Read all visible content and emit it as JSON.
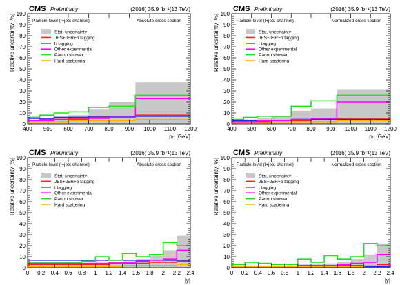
{
  "colors": {
    "stat": "#c8c8c8",
    "jes": "#ff2020",
    "btag": "#1e2cf0",
    "tag": "#1e2cf0",
    "other": "#ff00ff",
    "ps": "#1ce01c",
    "hard": "#ffb000"
  },
  "chart_data": [
    {
      "type": "histogram",
      "cms": "CMS",
      "prelim": "Preliminary",
      "lumi": "(2016) 35.9 fb⁻¹(13 TeV)",
      "channel": "Particle level (l+jets channel)",
      "xs_label": "Absolute cross section",
      "xlabel": "pₜˡ [GeV]",
      "ylabel": "Relative uncertainty [%]",
      "xlim": [
        400,
        1200
      ],
      "ylim": [
        0,
        100
      ],
      "xticks": [
        400,
        500,
        600,
        700,
        800,
        900,
        1000,
        1100,
        1200
      ],
      "yticks": [
        0,
        10,
        20,
        30,
        40,
        50,
        60,
        70,
        80,
        90,
        100
      ],
      "bins": [
        400,
        460,
        530,
        600,
        700,
        800,
        930,
        1200
      ],
      "series": [
        {
          "name": "Stat. uncertainty",
          "key": "stat",
          "fill": true,
          "values": [
            4,
            5,
            6,
            8,
            13,
            20,
            38
          ]
        },
        {
          "name": "JES+JER+b tagging",
          "key": "jes",
          "values": [
            3,
            4,
            4,
            5,
            6,
            7,
            8
          ]
        },
        {
          "name": "b tagging",
          "key": "btag",
          "values": [
            5,
            5,
            6,
            6,
            7,
            7,
            7
          ]
        },
        {
          "name": "Other experimental",
          "key": "other",
          "values": [
            3,
            3,
            4,
            4,
            5,
            6,
            23
          ]
        },
        {
          "name": "Parton shower",
          "key": "ps",
          "values": [
            6,
            8,
            10,
            11,
            15,
            16,
            26
          ]
        },
        {
          "name": "Hard scattering",
          "key": "hard",
          "values": [
            2,
            2,
            2,
            3,
            3,
            3,
            4
          ]
        }
      ]
    },
    {
      "type": "histogram",
      "cms": "CMS",
      "prelim": "Preliminary",
      "lumi": "(2016) 35.9 fb⁻¹(13 TeV)",
      "channel": "Particle level (l+jets channel)",
      "xs_label": "Normalized cross section",
      "xlabel": "pₜˡ [GeV]",
      "ylabel": "Relative uncertainty [%]",
      "xlim": [
        400,
        1200
      ],
      "ylim": [
        0,
        100
      ],
      "xticks": [
        400,
        500,
        600,
        700,
        800,
        900,
        1000,
        1100,
        1200
      ],
      "yticks": [
        0,
        10,
        20,
        30,
        40,
        50,
        60,
        70,
        80,
        90,
        100
      ],
      "bins": [
        400,
        460,
        530,
        600,
        700,
        800,
        930,
        1200
      ],
      "series": [
        {
          "name": "Stat. uncertainty",
          "key": "stat",
          "fill": true,
          "values": [
            3,
            4,
            5,
            7,
            12,
            14,
            31
          ]
        },
        {
          "name": "JES+JER+b tagging",
          "key": "jes",
          "values": [
            2,
            2,
            2,
            3,
            3,
            4,
            5
          ]
        },
        {
          "name": "t tagging",
          "key": "tag",
          "values": [
            3,
            3,
            3,
            3,
            4,
            4,
            4
          ]
        },
        {
          "name": "Other experimental",
          "key": "other",
          "values": [
            2,
            2,
            3,
            3,
            4,
            5,
            20
          ]
        },
        {
          "name": "Parton shower",
          "key": "ps",
          "values": [
            4,
            6,
            7,
            7,
            16,
            21,
            26
          ]
        },
        {
          "name": "Hard scattering",
          "key": "hard",
          "values": [
            1,
            1,
            1,
            2,
            2,
            2,
            3
          ]
        }
      ]
    },
    {
      "type": "histogram",
      "cms": "CMS",
      "prelim": "Preliminary",
      "lumi": "(2016) 35.9 fb⁻¹(13 TeV)",
      "channel": "Particle level (l+jets channel)",
      "xs_label": "Absolute cross section",
      "xlabel": "|y|",
      "ylabel": "Relative uncertainty [%]",
      "xlim": [
        0,
        2.4
      ],
      "ylim": [
        0,
        100
      ],
      "xticks": [
        0,
        0.2,
        0.4,
        0.6,
        0.8,
        1,
        1.2,
        1.4,
        1.6,
        1.8,
        2,
        2.2,
        2.4
      ],
      "yticks": [
        0,
        10,
        20,
        30,
        40,
        50,
        60,
        70,
        80,
        90,
        100
      ],
      "bins": [
        0,
        0.2,
        0.4,
        0.6,
        0.8,
        1.0,
        1.2,
        1.4,
        1.6,
        1.8,
        2.0,
        2.2,
        2.4
      ],
      "series": [
        {
          "name": "Stat. uncertainty",
          "key": "stat",
          "fill": true,
          "values": [
            3,
            3,
            3,
            3,
            3,
            4,
            5,
            6,
            8,
            11,
            16,
            29
          ]
        },
        {
          "name": "JES+JER+b tagging",
          "key": "jes",
          "values": [
            3,
            3,
            3,
            3,
            3,
            3,
            4,
            4,
            4,
            5,
            5,
            6
          ]
        },
        {
          "name": "t tagging",
          "key": "tag",
          "values": [
            7,
            7,
            7,
            7,
            7,
            7,
            7,
            7,
            7,
            7,
            7,
            7
          ]
        },
        {
          "name": "Other experimental",
          "key": "other",
          "values": [
            4,
            4,
            4,
            4,
            4,
            4,
            5,
            5,
            6,
            7,
            8,
            16
          ]
        },
        {
          "name": "Parton shower",
          "key": "ps",
          "values": [
            5,
            5,
            5,
            5,
            6,
            10,
            7,
            13,
            10,
            12,
            23,
            20
          ]
        },
        {
          "name": "Hard scattering",
          "key": "hard",
          "values": [
            1,
            1,
            1,
            1,
            1,
            1,
            1,
            2,
            2,
            2,
            2,
            3
          ]
        }
      ]
    },
    {
      "type": "histogram",
      "cms": "CMS",
      "prelim": "Preliminary",
      "lumi": "(2016) 35.9 fb⁻¹(13 TeV)",
      "channel": "Particle level (l+jets channel)",
      "xs_label": "Normalized cross section",
      "xlabel": "|y|",
      "ylabel": "Relative uncertainty [%]",
      "xlim": [
        0,
        2.4
      ],
      "ylim": [
        0,
        100
      ],
      "xticks": [
        0,
        0.2,
        0.4,
        0.6,
        0.8,
        1,
        1.2,
        1.4,
        1.6,
        1.8,
        2,
        2.2,
        2.4
      ],
      "yticks": [
        0,
        10,
        20,
        30,
        40,
        50,
        60,
        70,
        80,
        90,
        100
      ],
      "bins": [
        0,
        0.2,
        0.4,
        0.6,
        0.8,
        1.0,
        1.2,
        1.4,
        1.6,
        1.8,
        2.0,
        2.2,
        2.4
      ],
      "series": [
        {
          "name": "Stat. uncertainty",
          "key": "stat",
          "fill": true,
          "values": [
            2,
            2,
            2,
            2,
            2,
            3,
            3,
            4,
            5,
            8,
            12,
            22
          ]
        },
        {
          "name": "JES+JER+b tagging",
          "key": "jes",
          "values": [
            1,
            1,
            1,
            1,
            1,
            1,
            2,
            2,
            2,
            2,
            2,
            3
          ]
        },
        {
          "name": "t tagging",
          "key": "tag",
          "values": [
            1,
            1,
            1,
            1,
            1,
            1,
            1,
            1,
            1,
            1,
            1,
            1
          ]
        },
        {
          "name": "Other experimental",
          "key": "other",
          "values": [
            1,
            1,
            1,
            1,
            1,
            2,
            2,
            2,
            3,
            4,
            5,
            12
          ]
        },
        {
          "name": "Parton shower",
          "key": "ps",
          "values": [
            3,
            5,
            4,
            3,
            3,
            8,
            5,
            11,
            8,
            10,
            22,
            20
          ]
        },
        {
          "name": "Hard scattering",
          "key": "hard",
          "values": [
            1,
            1,
            1,
            1,
            1,
            1,
            1,
            1,
            1,
            1,
            2,
            2
          ]
        }
      ]
    }
  ]
}
